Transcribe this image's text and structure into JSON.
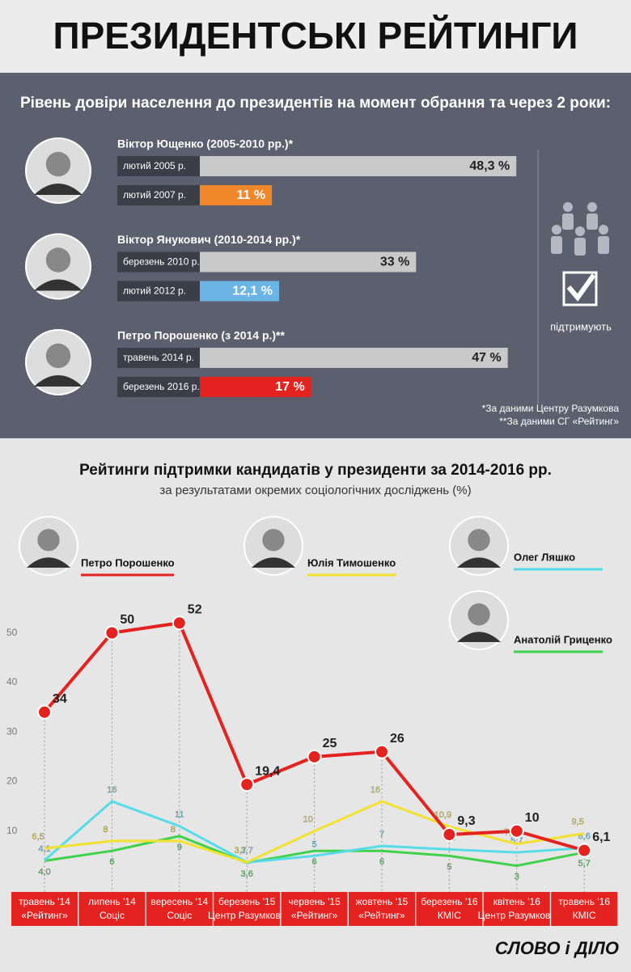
{
  "title": "ПРЕЗИДЕНТСЬКІ РЕЙТИНГИ",
  "legend_note": "підтримують",
  "footnotes": [
    "*За даними Центру Разумкова",
    "**За даними СГ «Рейтинг»"
  ],
  "logo": "СЛОВО і ДІЛО",
  "chart_data": [
    {
      "type": "paired-bar",
      "title": "Рівень довіри населення до президентів на момент обрання та через 2 роки:",
      "groups": [
        {
          "name": "Віктор Ющенко (2005-2010 рр.)*",
          "categories": [
            "лютий 2005 р.",
            "лютий 2007 р."
          ],
          "values": [
            48.3,
            11
          ],
          "value_labels": [
            "48,3 %",
            "11 %"
          ],
          "colors": [
            "#c9c9c9",
            "#f0872a"
          ]
        },
        {
          "name": "Віктор Янукович (2010-2014 рр.)*",
          "categories": [
            "березень 2010 р.",
            "лютий 2012 р."
          ],
          "values": [
            33,
            12.1
          ],
          "value_labels": [
            "33 %",
            "12,1 %"
          ],
          "colors": [
            "#c9c9c9",
            "#6ab4e6"
          ]
        },
        {
          "name": "Петро Порошенко (з 2014 р.)**",
          "categories": [
            "травень 2014 р.",
            "березень 2016 р."
          ],
          "values": [
            47,
            17
          ],
          "value_labels": [
            "47 %",
            "17 %"
          ],
          "colors": [
            "#c9c9c9",
            "#e42320"
          ]
        }
      ]
    },
    {
      "type": "line",
      "title": "Рейтинги підтримки кандидатів у президенти за 2014-2016 рр.",
      "subtitle": "за результатами окремих соціологічних досліджень (%)",
      "categories": [
        "травень '14",
        "липень '14",
        "вересень '14",
        "березень '15",
        "червень '15",
        "жовтень '15",
        "березень '16",
        "квітень '16",
        "травень '16"
      ],
      "sources": [
        "«Рейтинг»",
        "Соціс",
        "Соціс",
        "Центр Разумкова",
        "«Рейтинг»",
        "«Рейтинг»",
        "КМІС",
        "Центр Разумкова",
        "КМІС"
      ],
      "ylim": [
        0,
        55
      ],
      "yticks": [
        10,
        20,
        30,
        40,
        50
      ],
      "series": [
        {
          "name": "Петро Порошенко",
          "color": "#e42320",
          "values": [
            34,
            50,
            52,
            19.4,
            25,
            26,
            9.3,
            10,
            6.1
          ],
          "value_labels": [
            "34",
            "50",
            "52",
            "19,4",
            "25",
            "26",
            "9,3",
            "10",
            "6,1"
          ]
        },
        {
          "name": "Юлія Тимошенко",
          "color": "#f2e12e",
          "values": [
            6.5,
            8,
            8,
            3.7,
            10,
            16,
            10.9,
            7.4,
            9.5
          ],
          "value_labels": [
            "6,5",
            "8",
            "8",
            "3,7",
            "10",
            "16",
            "10,9",
            "7,4",
            "9,5"
          ]
        },
        {
          "name": "Олег Ляшко",
          "color": "#56dce8",
          "values": [
            4.1,
            16,
            11,
            3.7,
            5,
            7,
            6.3,
            5.7,
            6.6
          ],
          "value_labels": [
            "4,1",
            "16",
            "11",
            "3,7",
            "5",
            "7",
            "6,3",
            "5,7",
            "6,6"
          ]
        },
        {
          "name": "Анатолій Гриценко",
          "color": "#3fd24a",
          "values": [
            4.0,
            6,
            9,
            3.6,
            6,
            6,
            5,
            3,
            5.7
          ],
          "value_labels": [
            "4,0",
            "6",
            "9",
            "3,6",
            "6",
            "6",
            "5",
            "3",
            "5,7"
          ]
        }
      ]
    }
  ]
}
